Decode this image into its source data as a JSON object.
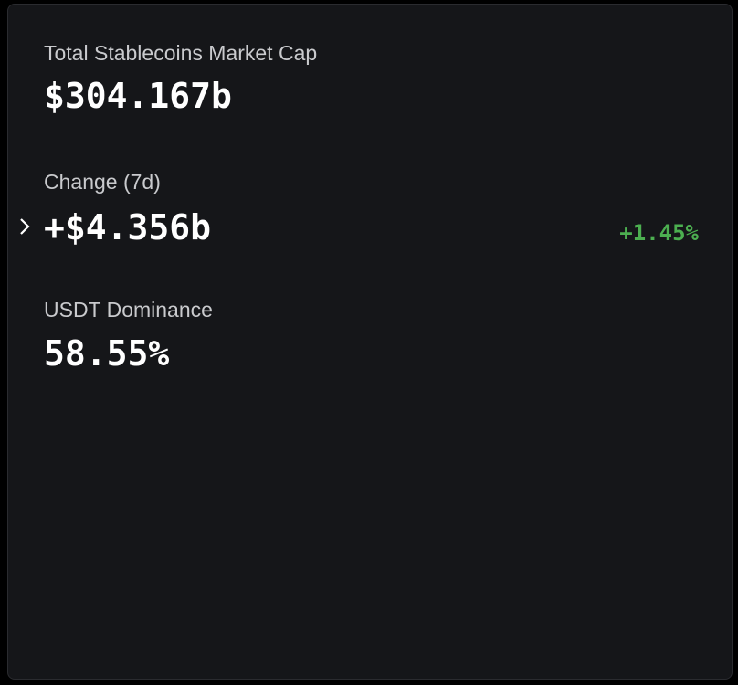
{
  "stats": [
    {
      "label": "Total Stablecoins Market Cap",
      "value": "$304.167b"
    },
    {
      "label": "Change (7d)",
      "value": "+$4.356b",
      "percent": "+1.45%"
    },
    {
      "label": "USDT Dominance",
      "value": "58.55%"
    }
  ]
}
